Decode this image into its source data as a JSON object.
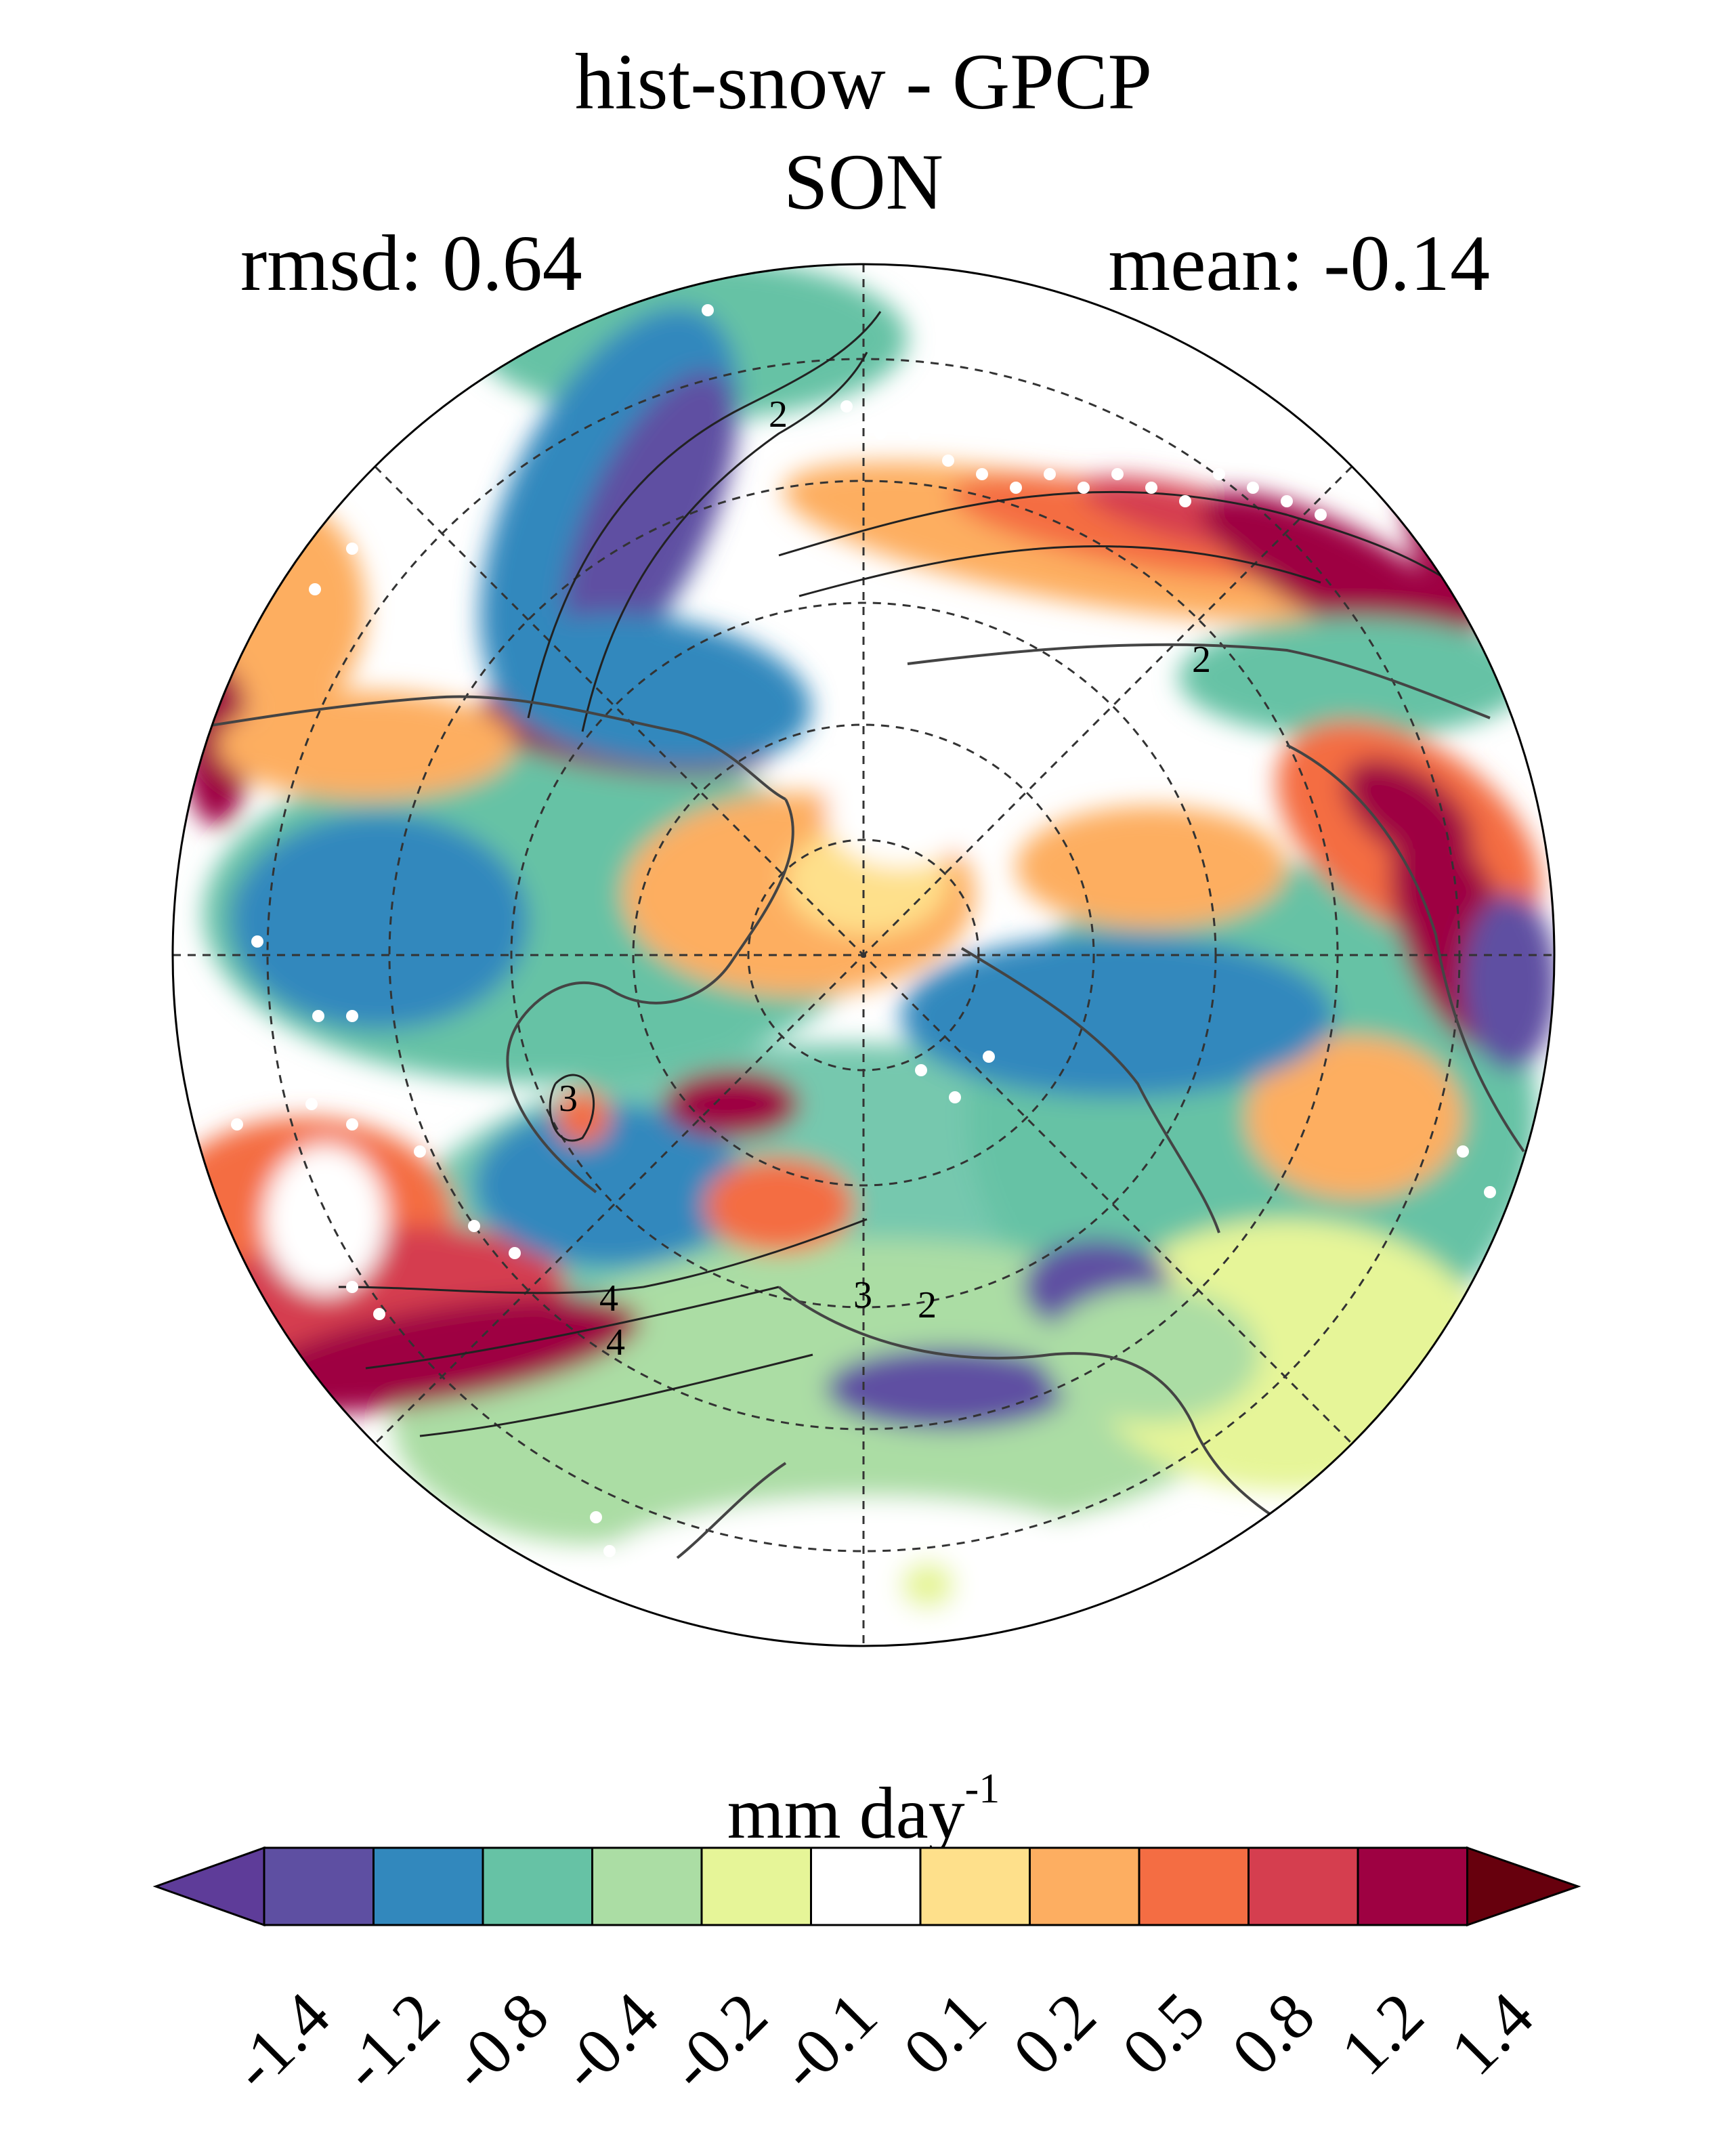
{
  "title": {
    "line1": "hist-snow - GPCP",
    "line2": "SON"
  },
  "stats": {
    "left": "rmsd: 0.64",
    "right": "mean: -0.14"
  },
  "contour_labels": [
    "2",
    "2",
    "2",
    "3",
    "3",
    "4",
    "4"
  ],
  "colorbar": {
    "units_text": "mm day",
    "units_exponent": "-1",
    "levels": [
      "-1.4",
      "-1.2",
      "-0.8",
      "-0.4",
      "-0.2",
      "-0.1",
      "0.1",
      "0.2",
      "0.5",
      "0.8",
      "1.2",
      "1.4"
    ],
    "colors": [
      "#5e3c99",
      "#5e4fa2",
      "#3288bd",
      "#66c2a5",
      "#abdda4",
      "#e6f598",
      "#ffffff",
      "#fee08b",
      "#fdae61",
      "#f46d43",
      "#d53e4f",
      "#9e0142",
      "#67000d"
    ]
  }
}
